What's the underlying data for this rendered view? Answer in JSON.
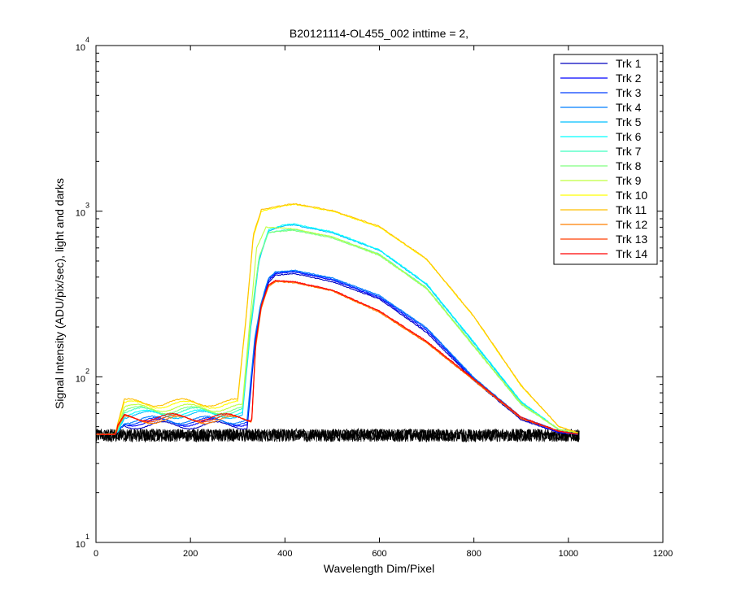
{
  "chart_data": {
    "type": "line",
    "title": "B20121114-OL455_002 inttime = 2,",
    "xlabel": "Wavelength Dim/Pixel",
    "ylabel": "Signal Intensity (ADU/pix/sec), light and darks",
    "xlim": [
      0,
      1200
    ],
    "ylim": [
      10,
      10000
    ],
    "yscale": "log",
    "x_ticks": [
      0,
      200,
      400,
      600,
      800,
      1000,
      1200
    ],
    "y_ticks": [
      {
        "value": 10,
        "base": "10",
        "exp": "1"
      },
      {
        "value": 100,
        "base": "10",
        "exp": "2"
      },
      {
        "value": 1000,
        "base": "10",
        "exp": "3"
      },
      {
        "value": 10000,
        "base": "10",
        "exp": "4"
      }
    ],
    "legend_position": "top-right",
    "grid": false,
    "darks": {
      "color": "#000000",
      "x_range": [
        0,
        1023
      ],
      "y_min": 40.5,
      "y_max": 48.5
    },
    "series": [
      {
        "name": "Trk 1",
        "color": "#0000bf",
        "points": [
          [
            0,
            45
          ],
          [
            40,
            45
          ],
          [
            60,
            51
          ],
          [
            320,
            51
          ],
          [
            336,
            150
          ],
          [
            348,
            250
          ],
          [
            365,
            370
          ],
          [
            380,
            410
          ],
          [
            420,
            420
          ],
          [
            500,
            375
          ],
          [
            600,
            295
          ],
          [
            700,
            185
          ],
          [
            800,
            95
          ],
          [
            900,
            55
          ],
          [
            980,
            46
          ],
          [
            1020,
            45
          ]
        ]
      },
      {
        "name": "Trk 2",
        "color": "#0000ff",
        "points": [
          [
            0,
            45
          ],
          [
            40,
            45
          ],
          [
            60,
            53
          ],
          [
            320,
            53
          ],
          [
            336,
            160
          ],
          [
            348,
            260
          ],
          [
            365,
            380
          ],
          [
            380,
            420
          ],
          [
            420,
            430
          ],
          [
            500,
            385
          ],
          [
            600,
            300
          ],
          [
            700,
            190
          ],
          [
            800,
            97
          ],
          [
            900,
            56
          ],
          [
            980,
            46
          ],
          [
            1020,
            45
          ]
        ]
      },
      {
        "name": "Trk 3",
        "color": "#003fff",
        "points": [
          [
            0,
            45
          ],
          [
            40,
            45
          ],
          [
            60,
            54
          ],
          [
            320,
            54
          ],
          [
            336,
            165
          ],
          [
            348,
            265
          ],
          [
            365,
            390
          ],
          [
            380,
            425
          ],
          [
            420,
            435
          ],
          [
            500,
            390
          ],
          [
            600,
            305
          ],
          [
            700,
            195
          ],
          [
            800,
            98
          ],
          [
            900,
            57
          ],
          [
            980,
            47
          ],
          [
            1020,
            45
          ]
        ]
      },
      {
        "name": "Trk 4",
        "color": "#007fff",
        "points": [
          [
            0,
            45
          ],
          [
            40,
            45
          ],
          [
            60,
            55
          ],
          [
            320,
            55
          ],
          [
            336,
            170
          ],
          [
            348,
            270
          ],
          [
            365,
            395
          ],
          [
            380,
            430
          ],
          [
            420,
            440
          ],
          [
            500,
            395
          ],
          [
            600,
            310
          ],
          [
            700,
            198
          ],
          [
            800,
            99
          ],
          [
            900,
            57
          ],
          [
            980,
            47
          ],
          [
            1020,
            45
          ]
        ]
      },
      {
        "name": "Trk 5",
        "color": "#00bfff",
        "points": [
          [
            0,
            45
          ],
          [
            40,
            45
          ],
          [
            60,
            59
          ],
          [
            310,
            59
          ],
          [
            330,
            220
          ],
          [
            345,
            500
          ],
          [
            365,
            760
          ],
          [
            400,
            820
          ],
          [
            420,
            825
          ],
          [
            500,
            740
          ],
          [
            600,
            580
          ],
          [
            700,
            360
          ],
          [
            800,
            160
          ],
          [
            900,
            70
          ],
          [
            980,
            48
          ],
          [
            1020,
            46
          ]
        ]
      },
      {
        "name": "Trk 6",
        "color": "#00ffff",
        "points": [
          [
            0,
            45
          ],
          [
            40,
            45
          ],
          [
            60,
            60
          ],
          [
            310,
            60
          ],
          [
            330,
            230
          ],
          [
            345,
            510
          ],
          [
            365,
            770
          ],
          [
            400,
            830
          ],
          [
            420,
            835
          ],
          [
            500,
            750
          ],
          [
            600,
            585
          ],
          [
            700,
            365
          ],
          [
            800,
            162
          ],
          [
            900,
            71
          ],
          [
            980,
            48
          ],
          [
            1020,
            46
          ]
        ]
      },
      {
        "name": "Trk 7",
        "color": "#3fffbf",
        "points": [
          [
            0,
            45
          ],
          [
            40,
            45
          ],
          [
            60,
            62
          ],
          [
            310,
            62
          ],
          [
            330,
            240
          ],
          [
            345,
            520
          ],
          [
            365,
            740
          ],
          [
            400,
            770
          ],
          [
            420,
            775
          ],
          [
            500,
            700
          ],
          [
            600,
            550
          ],
          [
            700,
            345
          ],
          [
            800,
            155
          ],
          [
            900,
            69
          ],
          [
            980,
            48
          ],
          [
            1020,
            46
          ]
        ]
      },
      {
        "name": "Trk 8",
        "color": "#7fff7f",
        "points": [
          [
            0,
            45
          ],
          [
            40,
            45
          ],
          [
            60,
            63
          ],
          [
            310,
            63
          ],
          [
            330,
            245
          ],
          [
            345,
            525
          ],
          [
            365,
            745
          ],
          [
            400,
            760
          ],
          [
            420,
            765
          ],
          [
            500,
            690
          ],
          [
            600,
            540
          ],
          [
            700,
            340
          ],
          [
            800,
            152
          ],
          [
            900,
            68
          ],
          [
            980,
            48
          ],
          [
            1020,
            46
          ]
        ]
      },
      {
        "name": "Trk 9",
        "color": "#bfff3f",
        "points": [
          [
            0,
            45
          ],
          [
            40,
            45
          ],
          [
            60,
            65
          ],
          [
            310,
            65
          ],
          [
            325,
            200
          ],
          [
            340,
            600
          ],
          [
            360,
            800
          ],
          [
            400,
            790
          ],
          [
            420,
            780
          ],
          [
            500,
            700
          ],
          [
            600,
            545
          ],
          [
            700,
            342
          ],
          [
            800,
            153
          ],
          [
            900,
            69
          ],
          [
            980,
            48
          ],
          [
            1020,
            46
          ]
        ]
      },
      {
        "name": "Trk 10",
        "color": "#ffff00",
        "points": [
          [
            0,
            45
          ],
          [
            40,
            45
          ],
          [
            60,
            68
          ],
          [
            300,
            68
          ],
          [
            318,
            220
          ],
          [
            333,
            700
          ],
          [
            350,
            1000
          ],
          [
            400,
            1080
          ],
          [
            420,
            1100
          ],
          [
            500,
            1000
          ],
          [
            600,
            800
          ],
          [
            700,
            510
          ],
          [
            800,
            230
          ],
          [
            900,
            88
          ],
          [
            980,
            50
          ],
          [
            1020,
            46
          ]
        ]
      },
      {
        "name": "Trk 11",
        "color": "#ffbf00",
        "points": [
          [
            0,
            45
          ],
          [
            40,
            45
          ],
          [
            60,
            70
          ],
          [
            300,
            70
          ],
          [
            318,
            230
          ],
          [
            333,
            720
          ],
          [
            350,
            1020
          ],
          [
            400,
            1090
          ],
          [
            420,
            1110
          ],
          [
            500,
            1010
          ],
          [
            600,
            810
          ],
          [
            700,
            515
          ],
          [
            800,
            232
          ],
          [
            900,
            89
          ],
          [
            980,
            50
          ],
          [
            1020,
            46
          ]
        ]
      },
      {
        "name": "Trk 12",
        "color": "#ff7f00",
        "points": [
          [
            0,
            45
          ],
          [
            40,
            45
          ],
          [
            60,
            55
          ],
          [
            330,
            55
          ],
          [
            338,
            150
          ],
          [
            350,
            260
          ],
          [
            365,
            350
          ],
          [
            380,
            375
          ],
          [
            420,
            370
          ],
          [
            500,
            330
          ],
          [
            600,
            245
          ],
          [
            700,
            160
          ],
          [
            800,
            95
          ],
          [
            900,
            56
          ],
          [
            980,
            47
          ],
          [
            1020,
            45
          ]
        ]
      },
      {
        "name": "Trk 13",
        "color": "#ff3f00",
        "points": [
          [
            0,
            45
          ],
          [
            40,
            45
          ],
          [
            60,
            56
          ],
          [
            330,
            56
          ],
          [
            338,
            155
          ],
          [
            350,
            265
          ],
          [
            365,
            355
          ],
          [
            380,
            380
          ],
          [
            420,
            372
          ],
          [
            500,
            332
          ],
          [
            600,
            248
          ],
          [
            700,
            162
          ],
          [
            800,
            96
          ],
          [
            900,
            56
          ],
          [
            980,
            47
          ],
          [
            1020,
            45
          ]
        ]
      },
      {
        "name": "Trk 14",
        "color": "#ff0000",
        "points": [
          [
            0,
            45
          ],
          [
            40,
            45
          ],
          [
            60,
            57
          ],
          [
            330,
            57
          ],
          [
            338,
            160
          ],
          [
            350,
            270
          ],
          [
            365,
            360
          ],
          [
            380,
            382
          ],
          [
            420,
            375
          ],
          [
            500,
            335
          ],
          [
            600,
            250
          ],
          [
            700,
            164
          ],
          [
            800,
            97
          ],
          [
            900,
            57
          ],
          [
            980,
            47
          ],
          [
            1020,
            45
          ]
        ]
      }
    ]
  }
}
